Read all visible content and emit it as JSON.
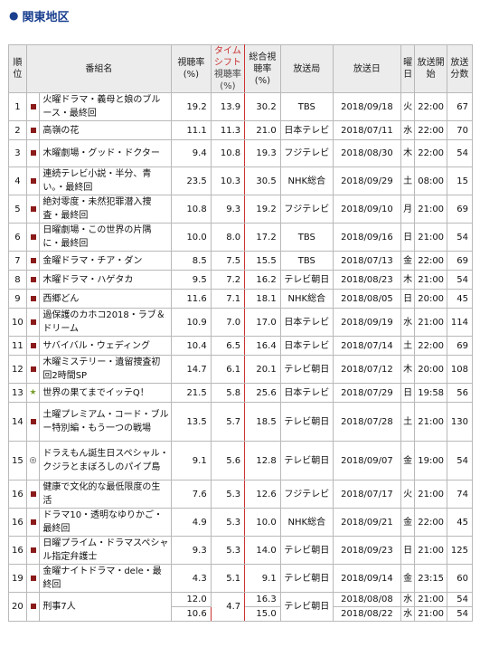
{
  "section_title": "関東地区",
  "headers": {
    "rank": "順位",
    "program": "番組名",
    "rating": "視聴率(%)",
    "timeshift_a": "タイム",
    "timeshift_b": "シフト",
    "timeshift_c": "視聴率",
    "timeshift_d": "(%)",
    "total": "総合視聴率(%)",
    "station": "放送局",
    "date": "放送日",
    "day": "曜日",
    "start": "放送開始",
    "minutes": "放送分数"
  },
  "rows": [
    {
      "rank": "1",
      "mark": "square",
      "program": "火曜ドラマ・義母と娘のブルース・最終回",
      "rating": "19.2",
      "timeshift": "13.9",
      "total": "30.2",
      "station": "TBS",
      "date": "2018/09/18",
      "day": "火",
      "start": "22:00",
      "minutes": "67"
    },
    {
      "rank": "2",
      "mark": "square",
      "program": "高嶺の花",
      "rating": "11.1",
      "timeshift": "11.3",
      "total": "21.0",
      "station": "日本テレビ",
      "date": "2018/07/11",
      "day": "水",
      "start": "22:00",
      "minutes": "70"
    },
    {
      "rank": "3",
      "mark": "square",
      "program": "木曜劇場・グッド・ドクター",
      "rating": "9.4",
      "timeshift": "10.8",
      "total": "19.3",
      "station": "フジテレビ",
      "date": "2018/08/30",
      "day": "木",
      "start": "22:00",
      "minutes": "54"
    },
    {
      "rank": "4",
      "mark": "square",
      "program": "連続テレビ小説・半分、青い。・最終回",
      "rating": "23.5",
      "timeshift": "10.3",
      "total": "30.5",
      "station": "NHK総合",
      "date": "2018/09/29",
      "day": "土",
      "start": "08:00",
      "minutes": "15"
    },
    {
      "rank": "5",
      "mark": "square",
      "program": "絶対零度・未然犯罪潜入捜査・最終回",
      "rating": "10.8",
      "timeshift": "9.3",
      "total": "19.2",
      "station": "フジテレビ",
      "date": "2018/09/10",
      "day": "月",
      "start": "21:00",
      "minutes": "69"
    },
    {
      "rank": "6",
      "mark": "square",
      "program": "日曜劇場・この世界の片隅に・最終回",
      "rating": "10.0",
      "timeshift": "8.0",
      "total": "17.2",
      "station": "TBS",
      "date": "2018/09/16",
      "day": "日",
      "start": "21:00",
      "minutes": "54"
    },
    {
      "rank": "7",
      "mark": "square",
      "program": "金曜ドラマ・チア・ダン",
      "rating": "8.5",
      "timeshift": "7.5",
      "total": "15.5",
      "station": "TBS",
      "date": "2018/07/13",
      "day": "金",
      "start": "22:00",
      "minutes": "69"
    },
    {
      "rank": "8",
      "mark": "square",
      "program": "木曜ドラマ・ハゲタカ",
      "rating": "9.5",
      "timeshift": "7.2",
      "total": "16.2",
      "station": "テレビ朝日",
      "date": "2018/08/23",
      "day": "木",
      "start": "21:00",
      "minutes": "54"
    },
    {
      "rank": "9",
      "mark": "square",
      "program": "西郷どん",
      "rating": "11.6",
      "timeshift": "7.1",
      "total": "18.1",
      "station": "NHK総合",
      "date": "2018/08/05",
      "day": "日",
      "start": "20:00",
      "minutes": "45"
    },
    {
      "rank": "10",
      "mark": "square",
      "program": "過保護のカホコ2018・ラブ＆ドリーム",
      "rating": "10.9",
      "timeshift": "7.0",
      "total": "17.0",
      "station": "日本テレビ",
      "date": "2018/09/19",
      "day": "水",
      "start": "21:00",
      "minutes": "114"
    },
    {
      "rank": "11",
      "mark": "square",
      "program": "サバイバル・ウェディング",
      "rating": "10.4",
      "timeshift": "6.5",
      "total": "16.4",
      "station": "日本テレビ",
      "date": "2018/07/14",
      "day": "土",
      "start": "22:00",
      "minutes": "69"
    },
    {
      "rank": "12",
      "mark": "square",
      "program": "木曜ミステリー・遺留捜査初回2時間SP",
      "rating": "14.7",
      "timeshift": "6.1",
      "total": "20.1",
      "station": "テレビ朝日",
      "date": "2018/07/12",
      "day": "木",
      "start": "20:00",
      "minutes": "108"
    },
    {
      "rank": "13",
      "mark": "star",
      "program": "世界の果てまでイッテQ！",
      "rating": "21.5",
      "timeshift": "5.8",
      "total": "25.6",
      "station": "日本テレビ",
      "date": "2018/07/29",
      "day": "日",
      "start": "19:58",
      "minutes": "56"
    },
    {
      "rank": "14",
      "mark": "square",
      "program": "土曜プレミアム・コード・ブルー特別編・もう一つの戦場",
      "rating": "13.5",
      "timeshift": "5.7",
      "total": "18.5",
      "station": "テレビ朝日",
      "date": "2018/07/28",
      "day": "土",
      "start": "21:00",
      "minutes": "130"
    },
    {
      "rank": "15",
      "mark": "circle",
      "program": "ドラえもん誕生日スペシャル・クジラとまぼろしのパイプ島",
      "rating": "9.1",
      "timeshift": "5.6",
      "total": "12.8",
      "station": "テレビ朝日",
      "date": "2018/09/07",
      "day": "金",
      "start": "19:00",
      "minutes": "54"
    },
    {
      "rank": "16",
      "mark": "square",
      "program": "健康で文化的な最低限度の生活",
      "rating": "7.6",
      "timeshift": "5.3",
      "total": "12.6",
      "station": "フジテレビ",
      "date": "2018/07/17",
      "day": "火",
      "start": "21:00",
      "minutes": "74"
    },
    {
      "rank": "16",
      "mark": "square",
      "program": "ドラマ10・透明なゆりかご・最終回",
      "rating": "4.9",
      "timeshift": "5.3",
      "total": "10.0",
      "station": "NHK総合",
      "date": "2018/09/21",
      "day": "金",
      "start": "22:00",
      "minutes": "45"
    },
    {
      "rank": "16",
      "mark": "square",
      "program": "日曜プライム・ドラマスペシャル指定弁護士",
      "rating": "9.3",
      "timeshift": "5.3",
      "total": "14.0",
      "station": "テレビ朝日",
      "date": "2018/09/23",
      "day": "日",
      "start": "21:00",
      "minutes": "125"
    },
    {
      "rank": "19",
      "mark": "square",
      "program": "金曜ナイトドラマ・dele・最終回",
      "rating": "4.3",
      "timeshift": "5.1",
      "total": "9.1",
      "station": "テレビ朝日",
      "date": "2018/09/14",
      "day": "金",
      "start": "23:15",
      "minutes": "60"
    }
  ],
  "last_row": {
    "rank": "20",
    "mark": "square",
    "program": "刑事7人",
    "rating_1": "12.0",
    "rating_2": "10.6",
    "timeshift": "4.7",
    "total_1": "16.3",
    "total_2": "15.0",
    "station": "テレビ朝日",
    "date_1": "2018/08/08",
    "date_2": "2018/08/22",
    "day_1": "水",
    "day_2": "水",
    "start_1": "21:00",
    "start_2": "21:00",
    "minutes_1": "54",
    "minutes_2": "54"
  }
}
